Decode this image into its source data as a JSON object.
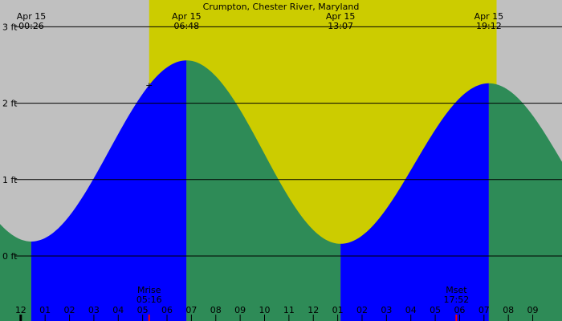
{
  "chart_data": {
    "type": "area",
    "title": "Crumpton, Chester River, Maryland",
    "units": "ft",
    "ylim": [
      -0.85,
      3.35
    ],
    "xlim_hours": [
      -0.85,
      22.2
    ],
    "y_ticks": [
      {
        "value": 0,
        "label": "0 ft"
      },
      {
        "value": 1,
        "label": "1 ft"
      },
      {
        "value": 2,
        "label": "2 ft"
      },
      {
        "value": 3,
        "label": "3 ft"
      }
    ],
    "tides": [
      {
        "type": "low",
        "date": "Apr 15",
        "time": "00:26",
        "height": 0.19
      },
      {
        "type": "high",
        "date": "Apr 15",
        "time": "06:48",
        "height": 2.56
      },
      {
        "type": "low",
        "date": "Apr 15",
        "time": "13:07",
        "height": 0.16
      },
      {
        "type": "high",
        "date": "Apr 15",
        "time": "19:12",
        "height": 2.26
      }
    ],
    "daylight": {
      "start": "05:16",
      "end": "19:31"
    },
    "moon": [
      {
        "label": "Mrise",
        "time": "05:16"
      },
      {
        "label": "Mset",
        "time": "17:52"
      }
    ],
    "x_ticks": [
      "1",
      "12",
      "01",
      "02",
      "03",
      "04",
      "05",
      "06",
      "07",
      "08",
      "09",
      "10",
      "11",
      "12",
      "01",
      "02",
      "03",
      "04",
      "05",
      "06",
      "07",
      "08",
      "09"
    ],
    "x_tick_hours": [
      -1,
      0,
      1,
      2,
      3,
      4,
      5,
      6,
      7,
      8,
      9,
      10,
      11,
      12,
      13,
      14,
      15,
      16,
      17,
      18,
      19,
      20,
      21
    ],
    "marker": {
      "symbol": "+",
      "time": "05:16"
    },
    "colors": {
      "background": "#c0c0c0",
      "daylight": "#cccc00",
      "rising": "#0000ff",
      "falling": "#2e8b57",
      "moon_tick": "#ff0000",
      "gridline": "#000000"
    }
  }
}
